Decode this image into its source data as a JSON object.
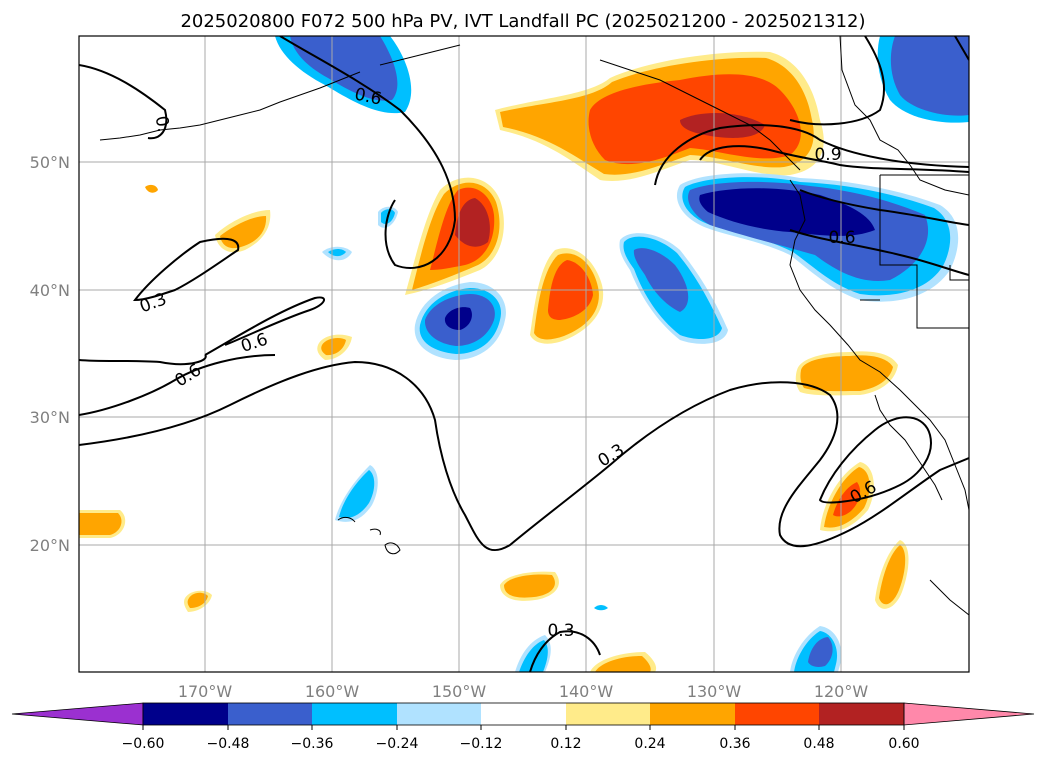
{
  "title": "2025020800 F072 500 hPa PV, IVT Landfall PC (2025021200 - 2025021312)",
  "axes": {
    "lat_ticks": [
      "50°N",
      "40°N",
      "30°N",
      "20°N"
    ],
    "lon_ticks": [
      "170°W",
      "160°W",
      "150°W",
      "140°W",
      "130°W",
      "120°W"
    ]
  },
  "colorbar": {
    "ticks": [
      "−0.60",
      "−0.48",
      "−0.36",
      "−0.24",
      "−0.12",
      "0.12",
      "0.24",
      "0.36",
      "0.48",
      "0.60"
    ],
    "colors": [
      "#9b30d0",
      "#00008b",
      "#3a5fcd",
      "#00bfff",
      "#b0e2ff",
      "#ffffff",
      "#ffeb8a",
      "#ffa500",
      "#ff4500",
      "#b22222",
      "#ff88aa"
    ]
  },
  "contour_labels": [
    "0.6",
    "0.9",
    "0.6",
    "0.3",
    "0.6",
    "0.6",
    "0.3",
    "0.6",
    "0.3"
  ],
  "colors": {
    "grid": "#a9a9a9",
    "tick": "#808080",
    "c_neg_strong": "#00008b",
    "c_neg_mid": "#3a5fcd",
    "c_neg": "#00bfff",
    "c_neg_light": "#b0e2ff",
    "c_pos_light": "#ffeb8a",
    "c_pos": "#ffa500",
    "c_pos_mid": "#ff4500",
    "c_pos_strong": "#b22222"
  }
}
